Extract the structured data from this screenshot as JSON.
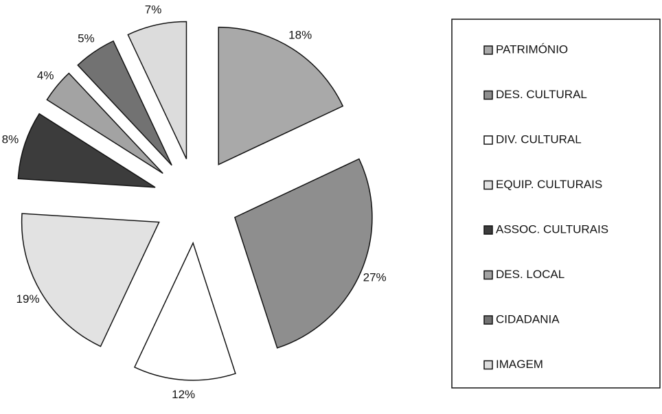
{
  "chart_data": {
    "type": "pie",
    "categories": [
      "PATRIMÓNIO",
      "DES. CULTURAL",
      "DIV. CULTURAL",
      "EQUIP. CULTURAIS",
      "ASSOC. CULTURAIS",
      "DES. LOCAL",
      "CIDADANIA",
      "IMAGEM"
    ],
    "values": [
      18,
      27,
      12,
      19,
      8,
      4,
      5,
      7
    ],
    "value_labels": [
      "18%",
      "27%",
      "12%",
      "19%",
      "8%",
      "4%",
      "5%",
      "7%"
    ],
    "colors": [
      "#a9a9a9",
      "#8e8e8e",
      "#ffffff",
      "#e2e2e2",
      "#3c3c3c",
      "#a3a3a3",
      "#727272",
      "#dcdcdc"
    ],
    "legend": "right"
  }
}
